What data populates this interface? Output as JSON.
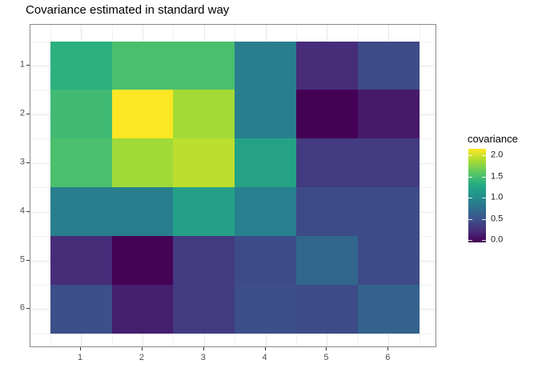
{
  "title": "Covariance estimated in standard way",
  "axes": {
    "x_tick_labels": [
      "1",
      "2",
      "3",
      "4",
      "5",
      "6"
    ],
    "y_tick_labels": [
      "1",
      "2",
      "3",
      "4",
      "5",
      "6"
    ]
  },
  "legend": {
    "title": "covariance",
    "tick_labels": [
      "2.0",
      "1.5",
      "1.0",
      "0.5",
      "0.0"
    ],
    "tick_values": [
      2.0,
      1.5,
      1.0,
      0.5,
      0.0
    ]
  },
  "chart_data": {
    "type": "heatmap",
    "title": "Covariance estimated in standard way",
    "x": [
      1,
      2,
      3,
      4,
      5,
      6
    ],
    "y_top_to_bottom": [
      1,
      2,
      3,
      4,
      5,
      6
    ],
    "values_rows_top_to_bottom": [
      [
        1.35,
        1.5,
        1.5,
        0.88,
        0.22,
        0.45
      ],
      [
        1.45,
        2.15,
        1.85,
        0.88,
        -0.05,
        0.1
      ],
      [
        1.5,
        1.84,
        1.93,
        1.22,
        0.33,
        0.33
      ],
      [
        0.88,
        0.88,
        1.2,
        0.9,
        0.45,
        0.45
      ],
      [
        0.22,
        -0.04,
        0.32,
        0.45,
        0.68,
        0.45
      ],
      [
        0.48,
        0.13,
        0.33,
        0.48,
        0.45,
        0.65
      ]
    ],
    "zlim": [
      -0.05,
      2.15
    ],
    "legend_title": "covariance",
    "colorbar_ticks": [
      2.0,
      1.5,
      1.0,
      0.5,
      0.0
    ],
    "colormap_name": "viridis",
    "colormap_stops": [
      {
        "t": 0.0,
        "color": "#440154"
      },
      {
        "t": 0.125,
        "color": "#472d7b"
      },
      {
        "t": 0.25,
        "color": "#3b528b"
      },
      {
        "t": 0.375,
        "color": "#2c728e"
      },
      {
        "t": 0.5,
        "color": "#21918c"
      },
      {
        "t": 0.625,
        "color": "#27ad81"
      },
      {
        "t": 0.75,
        "color": "#5ec962"
      },
      {
        "t": 0.875,
        "color": "#aadc32"
      },
      {
        "t": 1.0,
        "color": "#fde725"
      }
    ],
    "grid": true,
    "legend_position": "right"
  },
  "colors": {
    "background": "#ffffff",
    "panel_border": "#8a8a8a",
    "grid_major": "#e8e8e8",
    "grid_minor": "#f2f2f2",
    "tick_mark": "#333333",
    "tick_label": "#4d4d4d",
    "title_text": "#000000"
  }
}
